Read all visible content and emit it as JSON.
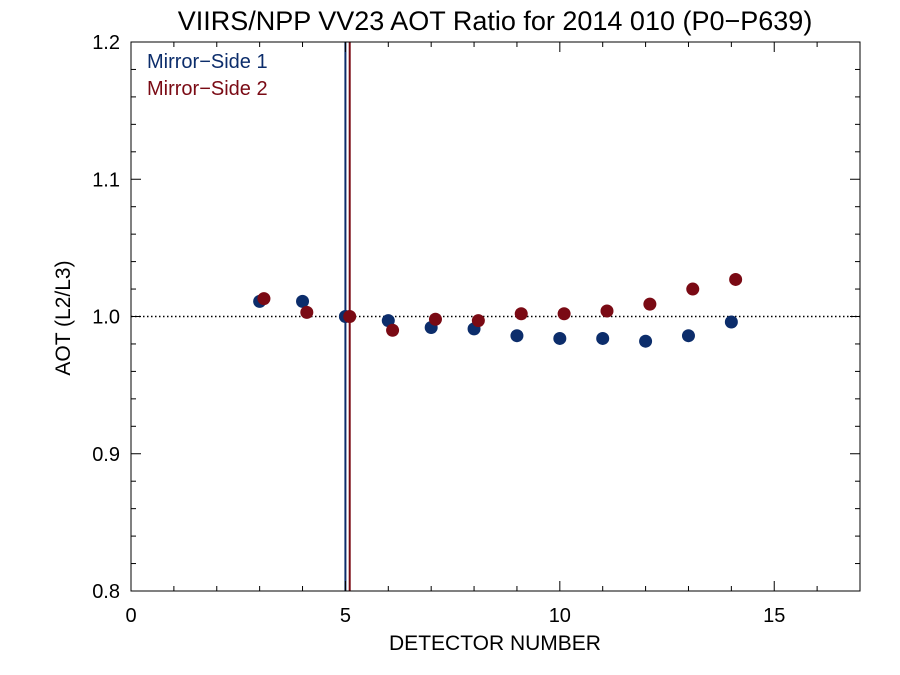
{
  "chart_data": {
    "type": "scatter",
    "title": "VIIRS/NPP VV23 AOT Ratio for 2014 010 (P0−P639)",
    "xlabel": "DETECTOR NUMBER",
    "ylabel": "AOT (L2/L3)",
    "xlim": [
      0,
      17
    ],
    "ylim": [
      0.8,
      1.2
    ],
    "xticks": [
      0,
      5,
      10,
      15
    ],
    "xtick_labels": [
      "0",
      "5",
      "10",
      "15"
    ],
    "yticks": [
      0.8,
      0.9,
      1.0,
      1.1,
      1.2
    ],
    "ytick_labels": [
      "0.8",
      "0.9",
      "1.0",
      "1.1",
      "1.2"
    ],
    "x_minor_step": 1,
    "y_minor_step": 0.02,
    "grid": false,
    "legend_position": "top-left",
    "reference_line": {
      "y": 1.0,
      "style": "dotted"
    },
    "vertical_lines": [
      {
        "x": 5.0,
        "color": "#0c2d6b"
      },
      {
        "x": 5.1,
        "color": "#7a0a14"
      }
    ],
    "series": [
      {
        "name": "Mirror−Side 1",
        "color": "#0c2d6b",
        "x": [
          3,
          4,
          5,
          6,
          7,
          8,
          9,
          10,
          11,
          12,
          13,
          14
        ],
        "y": [
          1.011,
          1.011,
          1.0,
          0.997,
          0.992,
          0.991,
          0.986,
          0.984,
          0.984,
          0.982,
          0.986,
          0.996
        ]
      },
      {
        "name": "Mirror−Side 2",
        "color": "#7a0a14",
        "x": [
          3.1,
          4.1,
          5.1,
          6.1,
          7.1,
          8.1,
          9.1,
          10.1,
          11.1,
          12.1,
          13.1,
          14.1
        ],
        "y": [
          1.013,
          1.003,
          1.0,
          0.99,
          0.998,
          0.997,
          1.002,
          1.002,
          1.004,
          1.009,
          1.02,
          1.027
        ]
      }
    ]
  }
}
